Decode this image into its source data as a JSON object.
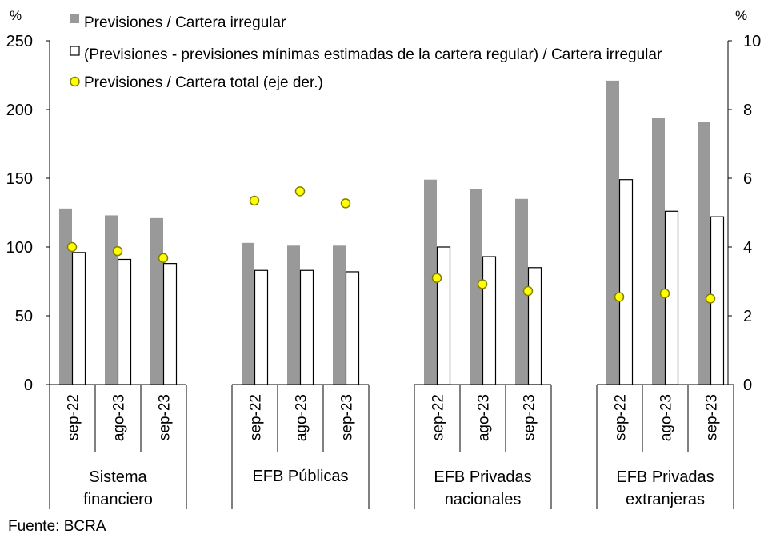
{
  "chart_data": {
    "type": "bar",
    "left_axis_unit": "%",
    "right_axis_unit": "%",
    "ylim_left": [
      0,
      250
    ],
    "yticks_left": [
      0,
      50,
      100,
      150,
      200,
      250
    ],
    "ylim_right": [
      0,
      10
    ],
    "yticks_right": [
      0,
      2,
      4,
      6,
      8,
      10
    ],
    "grid": false,
    "legend_position": "top-right",
    "groups": [
      {
        "label_lines": [
          "Sistema",
          "financiero"
        ],
        "categories": [
          "sep-22",
          "ago-23",
          "sep-23"
        ]
      },
      {
        "label_lines": [
          "EFB Públicas"
        ],
        "categories": [
          "sep-22",
          "ago-23",
          "sep-23"
        ]
      },
      {
        "label_lines": [
          "EFB Privadas",
          "nacionales"
        ],
        "categories": [
          "sep-22",
          "ago-23",
          "sep-23"
        ]
      },
      {
        "label_lines": [
          "EFB Privadas",
          "extranjeras"
        ],
        "categories": [
          "sep-22",
          "ago-23",
          "sep-23"
        ]
      }
    ],
    "series": [
      {
        "name": "Previsiones / Cartera irregular",
        "kind": "bar",
        "axis": "left",
        "color": "#999999",
        "values": [
          128,
          123,
          121,
          103,
          101,
          101,
          149,
          142,
          135,
          221,
          194,
          191
        ]
      },
      {
        "name": "(Previsiones - previsiones mínimas estimadas de la cartera regular) / Cartera irregular",
        "kind": "bar",
        "axis": "left",
        "color": "#ffffff",
        "stroke": "#000000",
        "values": [
          96,
          91,
          88,
          83,
          83,
          82,
          100,
          93,
          85,
          149,
          126,
          122
        ]
      },
      {
        "name": "Previsiones / Cartera total (eje der.)",
        "kind": "scatter",
        "axis": "right",
        "color": "#ffff00",
        "stroke": "#808000",
        "values": [
          4.0,
          3.88,
          3.68,
          5.35,
          5.62,
          5.27,
          3.1,
          2.92,
          2.72,
          2.55,
          2.65,
          2.5
        ]
      }
    ]
  },
  "source": "Fuente: BCRA"
}
